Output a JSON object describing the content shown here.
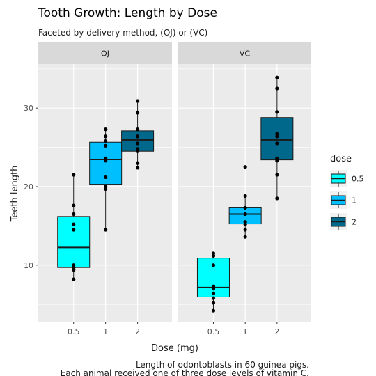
{
  "chart_data": {
    "type": "box",
    "title": "Tooth Growth:  Length by Dose",
    "subtitle": "Faceted by delivery method, (OJ) or (VC)",
    "xlabel": "Dose (mg)",
    "ylabel": "Teeth length",
    "caption_lines": [
      "Length of odontoblasts in 60 guinea pigs.",
      "Each animal received one of three dose levels of vitamin C."
    ],
    "ylim": [
      2.8,
      35.6
    ],
    "y_ticks": [
      10,
      20,
      30
    ],
    "categories": [
      "0.5",
      "1",
      "2"
    ],
    "grid": true,
    "legend": {
      "title": "dose",
      "position": "right",
      "entries": [
        {
          "label": "0.5",
          "color": "#00FFFF"
        },
        {
          "label": "1",
          "color": "#00BFFF"
        },
        {
          "label": "2",
          "color": "#00688B"
        }
      ]
    },
    "facets": [
      {
        "label": "OJ",
        "boxes": [
          {
            "dose": "0.5",
            "color": "#00FFFF",
            "whisker_low": 8.2,
            "q1": 9.7,
            "median": 12.25,
            "q3": 16.2,
            "whisker_high": 21.5,
            "points": [
              15.2,
              21.5,
              17.6,
              9.7,
              14.5,
              10.0,
              8.2,
              9.4,
              16.5,
              9.7
            ]
          },
          {
            "dose": "1",
            "color": "#00BFFF",
            "whisker_low": 14.5,
            "q1": 20.3,
            "median": 23.45,
            "q3": 25.65,
            "whisker_high": 27.3,
            "points": [
              19.7,
              23.3,
              23.6,
              26.4,
              20.0,
              25.2,
              25.8,
              21.2,
              14.5,
              27.3
            ]
          },
          {
            "dose": "2",
            "color": "#00688B",
            "whisker_low": 22.4,
            "q1": 24.5,
            "median": 25.95,
            "q3": 27.1,
            "whisker_high": 30.9,
            "points": [
              25.5,
              26.4,
              22.4,
              24.5,
              24.8,
              30.9,
              26.4,
              27.3,
              29.4,
              23.0
            ]
          }
        ]
      },
      {
        "label": "VC",
        "boxes": [
          {
            "dose": "0.5",
            "color": "#00FFFF",
            "whisker_low": 4.2,
            "q1": 5.95,
            "median": 7.15,
            "q3": 10.9,
            "whisker_high": 11.5,
            "points": [
              4.2,
              11.5,
              7.3,
              5.8,
              6.4,
              10.0,
              11.2,
              11.2,
              5.2,
              7.0
            ]
          },
          {
            "dose": "1",
            "color": "#00BFFF",
            "whisker_low": 13.6,
            "q1": 15.25,
            "median": 16.5,
            "q3": 17.3,
            "whisker_high": 18.8,
            "points": [
              16.5,
              16.5,
              15.2,
              17.3,
              22.5,
              17.3,
              13.6,
              14.5,
              18.8,
              15.5
            ]
          },
          {
            "dose": "2",
            "color": "#00688B",
            "whisker_low": 18.5,
            "q1": 23.4,
            "median": 25.95,
            "q3": 28.8,
            "whisker_high": 33.9,
            "points": [
              23.6,
              18.5,
              33.9,
              25.5,
              26.4,
              32.5,
              26.7,
              21.5,
              23.3,
              29.5
            ]
          }
        ]
      }
    ]
  }
}
